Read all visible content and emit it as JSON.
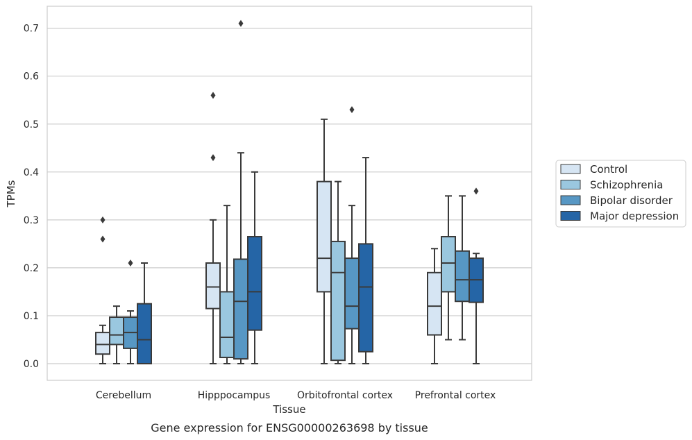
{
  "chart_data": {
    "type": "boxplot",
    "xlabel": "Tissue",
    "ylabel": "TPMs",
    "caption": "Gene expression for ENSG00000263698 by tissue",
    "ylim": [
      -0.035,
      0.75
    ],
    "yticks": [
      0.0,
      0.1,
      0.2,
      0.3,
      0.4,
      0.5,
      0.6,
      0.7
    ],
    "ytick_labels": [
      "0.0",
      "0.1",
      "0.2",
      "0.3",
      "0.4",
      "0.5",
      "0.6",
      "0.7"
    ],
    "grid": true,
    "legend_position": "right",
    "categories": [
      "Cerebellum",
      "Hipppocampus",
      "Orbitofrontal cortex",
      "Prefrontal cortex"
    ],
    "series": [
      {
        "name": "Control",
        "color": "#d6e5f3",
        "boxes": [
          {
            "whislo": 0.0,
            "q1": 0.02,
            "med": 0.04,
            "q3": 0.065,
            "whishi": 0.08,
            "fliers": [
              0.3,
              0.26
            ]
          },
          {
            "whislo": 0.0,
            "q1": 0.115,
            "med": 0.16,
            "q3": 0.21,
            "whishi": 0.3,
            "fliers": [
              0.56,
              0.43
            ]
          },
          {
            "whislo": 0.0,
            "q1": 0.15,
            "med": 0.22,
            "q3": 0.38,
            "whishi": 0.51,
            "fliers": []
          },
          {
            "whislo": 0.0,
            "q1": 0.06,
            "med": 0.12,
            "q3": 0.19,
            "whishi": 0.24,
            "fliers": []
          }
        ]
      },
      {
        "name": "Schizophrenia",
        "color": "#9ac7df",
        "boxes": [
          {
            "whislo": 0.0,
            "q1": 0.04,
            "med": 0.06,
            "q3": 0.097,
            "whishi": 0.12,
            "fliers": []
          },
          {
            "whislo": 0.0,
            "q1": 0.013,
            "med": 0.055,
            "q3": 0.15,
            "whishi": 0.33,
            "fliers": []
          },
          {
            "whislo": 0.0,
            "q1": 0.007,
            "med": 0.19,
            "q3": 0.255,
            "whishi": 0.38,
            "fliers": []
          },
          {
            "whislo": 0.05,
            "q1": 0.15,
            "med": 0.21,
            "q3": 0.265,
            "whishi": 0.35,
            "fliers": []
          }
        ]
      },
      {
        "name": "Bipolar disorder",
        "color": "#5797c4",
        "boxes": [
          {
            "whislo": 0.0,
            "q1": 0.032,
            "med": 0.065,
            "q3": 0.097,
            "whishi": 0.11,
            "fliers": [
              0.21
            ]
          },
          {
            "whislo": 0.0,
            "q1": 0.01,
            "med": 0.13,
            "q3": 0.218,
            "whishi": 0.44,
            "fliers": [
              0.71
            ]
          },
          {
            "whislo": 0.0,
            "q1": 0.073,
            "med": 0.12,
            "q3": 0.22,
            "whishi": 0.33,
            "fliers": [
              0.53
            ]
          },
          {
            "whislo": 0.05,
            "q1": 0.13,
            "med": 0.175,
            "q3": 0.235,
            "whishi": 0.35,
            "fliers": []
          }
        ]
      },
      {
        "name": "Major depression",
        "color": "#2565a6",
        "boxes": [
          {
            "whislo": 0.0,
            "q1": 0.0,
            "med": 0.05,
            "q3": 0.125,
            "whishi": 0.21,
            "fliers": []
          },
          {
            "whislo": 0.0,
            "q1": 0.07,
            "med": 0.15,
            "q3": 0.265,
            "whishi": 0.4,
            "fliers": []
          },
          {
            "whislo": 0.0,
            "q1": 0.025,
            "med": 0.16,
            "q3": 0.25,
            "whishi": 0.43,
            "fliers": []
          },
          {
            "whislo": 0.0,
            "q1": 0.128,
            "med": 0.175,
            "q3": 0.22,
            "whishi": 0.23,
            "fliers": [
              0.36
            ]
          }
        ]
      }
    ]
  },
  "colors": {
    "background": "#ffffff",
    "grid": "#cccccc",
    "spine": "#cccccc",
    "box_edge": "#3a3a3a"
  }
}
